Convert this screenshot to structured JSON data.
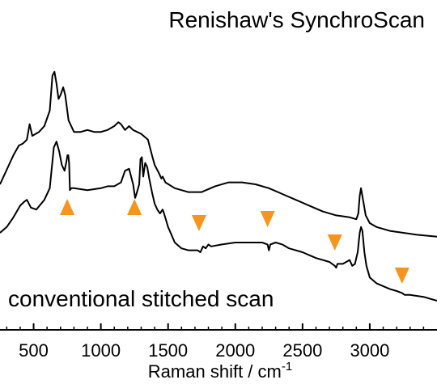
{
  "chart_data": {
    "type": "line",
    "title": "",
    "xlabel": "Raman shift / cm",
    "xlabel_superscript": "-1",
    "ylabel": "",
    "xlim": [
      250,
      3500
    ],
    "x_ticks": [
      500,
      1000,
      1500,
      2000,
      2500,
      3000
    ],
    "x_tick_labels": [
      "500",
      "1000",
      "1500",
      "2000",
      "2500",
      "3000"
    ],
    "y_ticks_shown": false,
    "grid": false,
    "accent_color": "#f7941d",
    "series": [
      {
        "name": "Renishaw's SynchroScan",
        "color": "#000000",
        "points": [
          [
            250,
            0.3
          ],
          [
            350,
            0.45
          ],
          [
            390,
            0.5
          ],
          [
            420,
            0.51
          ],
          [
            450,
            0.53
          ],
          [
            470,
            0.61
          ],
          [
            490,
            0.55
          ],
          [
            540,
            0.57
          ],
          [
            580,
            0.6
          ],
          [
            620,
            0.68
          ],
          [
            640,
            0.86
          ],
          [
            655,
            0.88
          ],
          [
            670,
            0.82
          ],
          [
            685,
            0.74
          ],
          [
            700,
            0.76
          ],
          [
            720,
            0.8
          ],
          [
            735,
            0.76
          ],
          [
            760,
            0.63
          ],
          [
            800,
            0.57
          ],
          [
            850,
            0.57
          ],
          [
            900,
            0.58
          ],
          [
            950,
            0.57
          ],
          [
            1000,
            0.57
          ],
          [
            1050,
            0.58
          ],
          [
            1100,
            0.6
          ],
          [
            1130,
            0.62
          ],
          [
            1150,
            0.61
          ],
          [
            1180,
            0.58
          ],
          [
            1210,
            0.6
          ],
          [
            1240,
            0.58
          ],
          [
            1300,
            0.56
          ],
          [
            1350,
            0.53
          ],
          [
            1380,
            0.45
          ],
          [
            1400,
            0.4
          ],
          [
            1430,
            0.36
          ],
          [
            1450,
            0.33
          ],
          [
            1460,
            0.34
          ],
          [
            1480,
            0.31
          ],
          [
            1550,
            0.28
          ],
          [
            1650,
            0.26
          ],
          [
            1750,
            0.26
          ],
          [
            1850,
            0.29
          ],
          [
            1950,
            0.31
          ],
          [
            2050,
            0.31
          ],
          [
            2150,
            0.3
          ],
          [
            2250,
            0.28
          ],
          [
            2350,
            0.25
          ],
          [
            2450,
            0.22
          ],
          [
            2550,
            0.19
          ],
          [
            2650,
            0.16
          ],
          [
            2750,
            0.14
          ],
          [
            2850,
            0.13
          ],
          [
            2900,
            0.12
          ],
          [
            2915,
            0.15
          ],
          [
            2925,
            0.24
          ],
          [
            2935,
            0.28
          ],
          [
            2950,
            0.22
          ],
          [
            2970,
            0.14
          ],
          [
            3000,
            0.1
          ],
          [
            3050,
            0.08
          ],
          [
            3150,
            0.06
          ],
          [
            3250,
            0.05
          ],
          [
            3350,
            0.04
          ],
          [
            3500,
            0.03
          ]
        ]
      },
      {
        "name": "conventional stitched scan",
        "color": "#000000",
        "points": [
          [
            250,
            0.05
          ],
          [
            300,
            0.08
          ],
          [
            350,
            0.13
          ],
          [
            400,
            0.19
          ],
          [
            430,
            0.21
          ],
          [
            450,
            0.22
          ],
          [
            480,
            0.18
          ],
          [
            520,
            0.17
          ],
          [
            580,
            0.22
          ],
          [
            620,
            0.28
          ],
          [
            650,
            0.49
          ],
          [
            670,
            0.52
          ],
          [
            690,
            0.47
          ],
          [
            710,
            0.4
          ],
          [
            730,
            0.37
          ],
          [
            745,
            0.42
          ],
          [
            752,
            0.45
          ],
          [
            758,
            0.45
          ],
          [
            764,
            0.41
          ],
          [
            770,
            0.27
          ],
          [
            780,
            0.28
          ],
          [
            800,
            0.28
          ],
          [
            900,
            0.27
          ],
          [
            1000,
            0.28
          ],
          [
            1050,
            0.29
          ],
          [
            1100,
            0.29
          ],
          [
            1150,
            0.31
          ],
          [
            1180,
            0.37
          ],
          [
            1210,
            0.38
          ],
          [
            1225,
            0.34
          ],
          [
            1240,
            0.3
          ],
          [
            1255,
            0.23
          ],
          [
            1265,
            0.25
          ],
          [
            1285,
            0.3
          ],
          [
            1295,
            0.43
          ],
          [
            1305,
            0.44
          ],
          [
            1315,
            0.34
          ],
          [
            1330,
            0.41
          ],
          [
            1345,
            0.39
          ],
          [
            1360,
            0.33
          ],
          [
            1380,
            0.26
          ],
          [
            1400,
            0.2
          ],
          [
            1420,
            0.17
          ],
          [
            1440,
            0.15
          ],
          [
            1460,
            0.17
          ],
          [
            1470,
            0.15
          ],
          [
            1500,
            0.08
          ],
          [
            1550,
            0.0
          ],
          [
            1600,
            -0.03
          ],
          [
            1650,
            -0.04
          ],
          [
            1720,
            -0.04
          ],
          [
            1740,
            -0.05
          ],
          [
            1760,
            -0.02
          ],
          [
            1780,
            -0.03
          ],
          [
            1800,
            -0.01
          ],
          [
            1820,
            -0.02
          ],
          [
            1900,
            -0.01
          ],
          [
            2000,
            0.0
          ],
          [
            2100,
            0.0
          ],
          [
            2200,
            0.0
          ],
          [
            2240,
            -0.01
          ],
          [
            2250,
            -0.04
          ],
          [
            2260,
            -0.01
          ],
          [
            2300,
            0.0
          ],
          [
            2350,
            -0.01
          ],
          [
            2400,
            -0.03
          ],
          [
            2500,
            -0.05
          ],
          [
            2600,
            -0.08
          ],
          [
            2700,
            -0.1
          ],
          [
            2740,
            -0.12
          ],
          [
            2750,
            -0.13
          ],
          [
            2760,
            -0.11
          ],
          [
            2800,
            -0.11
          ],
          [
            2850,
            -0.09
          ],
          [
            2870,
            -0.12
          ],
          [
            2890,
            -0.11
          ],
          [
            2910,
            -0.05
          ],
          [
            2925,
            0.05
          ],
          [
            2935,
            0.08
          ],
          [
            2945,
            0.06
          ],
          [
            2960,
            -0.05
          ],
          [
            2975,
            -0.12
          ],
          [
            3000,
            -0.18
          ],
          [
            3050,
            -0.21
          ],
          [
            3150,
            -0.24
          ],
          [
            3200,
            -0.25
          ],
          [
            3240,
            -0.26
          ],
          [
            3260,
            -0.27
          ],
          [
            3300,
            -0.27
          ],
          [
            3400,
            -0.28
          ],
          [
            3500,
            -0.3
          ]
        ]
      }
    ],
    "annotations": {
      "type": "triangle-markers",
      "color": "#f7941d",
      "up_at_x": [
        750,
        1250
      ],
      "down_at_x": [
        1730,
        2240,
        2740,
        3240
      ]
    }
  }
}
